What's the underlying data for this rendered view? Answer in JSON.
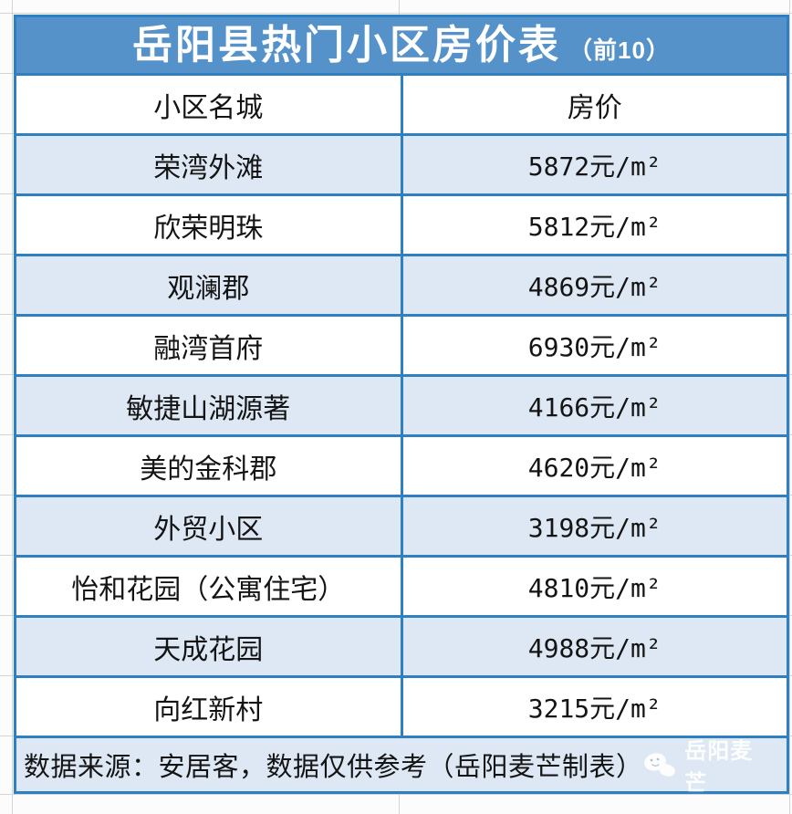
{
  "title": {
    "main": "岳阳县热门小区房价表",
    "subtitle": "（前10）"
  },
  "table": {
    "columns": [
      "小区名城",
      "房价"
    ],
    "rows": [
      {
        "name": "荣湾外滩",
        "price": "5872元/m²"
      },
      {
        "name": "欣荣明珠",
        "price": "5812元/m²"
      },
      {
        "name": "观澜郡",
        "price": "4869元/m²"
      },
      {
        "name": "融湾首府",
        "price": "6930元/m²"
      },
      {
        "name": "敏捷山湖源著",
        "price": "4166元/m²"
      },
      {
        "name": "美的金科郡",
        "price": "4620元/m²"
      },
      {
        "name": "外贸小区",
        "price": "3198元/m²"
      },
      {
        "name": "怡和花园（公寓住宅）",
        "price": "4810元/m²"
      },
      {
        "name": "天成花园",
        "price": "4988元/m²"
      },
      {
        "name": "向红新村",
        "price": "3215元/m²"
      }
    ]
  },
  "footer": {
    "note": "数据来源：安居客，数据仅供参考（岳阳麦芒制表）",
    "watermark": "岳阳麦芒",
    "logo_icon": "wheat-mascot-icon"
  },
  "colors": {
    "title_bar_blue": "#5592c9",
    "border_blue": "#2f80c3",
    "alt_row_blue": "#dde8f4",
    "gridline_grey": "#d4d4d4"
  },
  "chart_data": {
    "type": "table",
    "title": "岳阳县热门小区房价表（前10）",
    "columns": [
      "小区名城",
      "房价"
    ],
    "categories": [
      "荣湾外滩",
      "欣荣明珠",
      "观澜郡",
      "融湾首府",
      "敏捷山湖源著",
      "美的金科郡",
      "外贸小区",
      "怡和花园（公寓住宅）",
      "天成花园",
      "向红新村"
    ],
    "values": [
      5872,
      5812,
      4869,
      6930,
      4166,
      4620,
      3198,
      4810,
      4988,
      3215
    ],
    "units": "元/㎡",
    "source_note": "数据来源：安居客，数据仅供参考（岳阳麦芒制表）"
  }
}
